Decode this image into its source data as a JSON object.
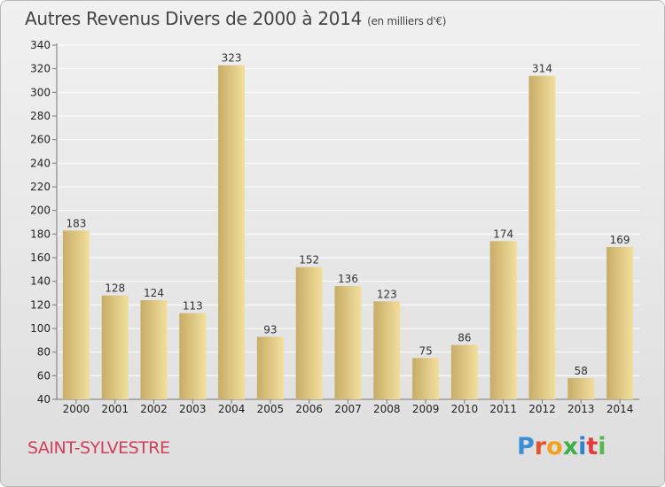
{
  "header": {
    "title": "Autres Revenus Divers de 2000 à 2014",
    "unit_note": "(en milliers d'€)"
  },
  "footer": {
    "town": "SAINT-SYLVESTRE",
    "logo": {
      "letters": [
        "P",
        "r",
        "o",
        "x",
        "i",
        "t",
        "i"
      ]
    }
  },
  "colors": {
    "bar_light": "#f3df9d",
    "bar_dark": "#c7ad67",
    "grid": "#ffffff",
    "town": "#d23f5a",
    "logo": [
      "#3b8fd6",
      "#e7532b",
      "#f0a11d",
      "#3fae49",
      "#2f84cc",
      "#e43b3b",
      "#59b84c"
    ]
  },
  "chart_data": {
    "type": "bar",
    "title": "Autres Revenus Divers de 2000 à 2014",
    "subtitle": "(en milliers d'€)",
    "xlabel": "",
    "ylabel": "",
    "categories": [
      "2000",
      "2001",
      "2002",
      "2003",
      "2004",
      "2005",
      "2006",
      "2007",
      "2008",
      "2009",
      "2010",
      "2011",
      "2012",
      "2013",
      "2014"
    ],
    "values": [
      183,
      128,
      124,
      113,
      323,
      93,
      152,
      136,
      123,
      75,
      86,
      174,
      314,
      58,
      169
    ],
    "ylim": [
      40,
      340
    ],
    "yticks": [
      40,
      60,
      80,
      100,
      120,
      140,
      160,
      180,
      200,
      220,
      240,
      260,
      280,
      300,
      320,
      340
    ],
    "grid": true,
    "legend": "none"
  }
}
